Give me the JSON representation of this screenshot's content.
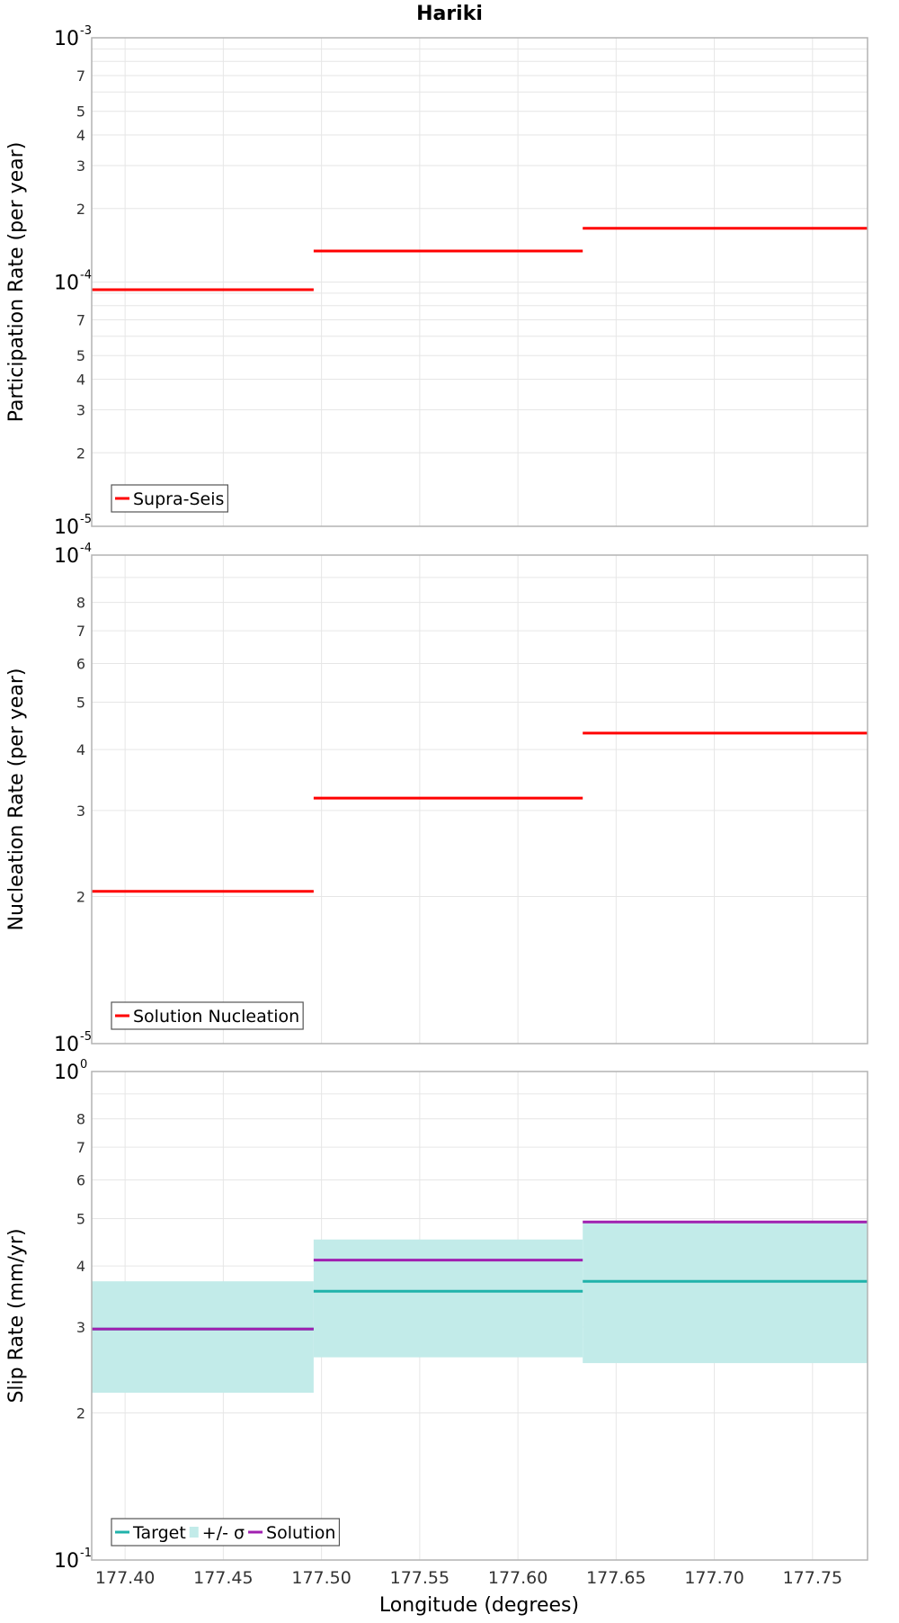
{
  "figure": {
    "title": "Hariki",
    "xlabel": "Longitude (degrees)"
  },
  "chart_data": [
    {
      "type": "line",
      "step": true,
      "ylabel": "Participation Rate (per year)",
      "yscale": "log",
      "ylim": [
        1e-05,
        0.001
      ],
      "xlim": [
        177.383,
        177.778
      ],
      "grid": true,
      "legend_position": "bottom-left",
      "series": [
        {
          "name": "Supra-Seis",
          "color": "#ff0000",
          "segments": [
            {
              "x0": 177.383,
              "x1": 177.496,
              "value": 9.3e-05
            },
            {
              "x0": 177.496,
              "x1": 177.633,
              "value": 0.000134
            },
            {
              "x0": 177.633,
              "x1": 177.778,
              "value": 0.000166
            }
          ]
        }
      ]
    },
    {
      "type": "line",
      "step": true,
      "ylabel": "Nucleation Rate (per year)",
      "yscale": "log",
      "ylim": [
        1e-05,
        0.0001
      ],
      "xlim": [
        177.383,
        177.778
      ],
      "grid": true,
      "legend_position": "bottom-left",
      "series": [
        {
          "name": "Solution Nucleation",
          "color": "#ff0000",
          "segments": [
            {
              "x0": 177.383,
              "x1": 177.496,
              "value": 2.05e-05
            },
            {
              "x0": 177.496,
              "x1": 177.633,
              "value": 3.18e-05
            },
            {
              "x0": 177.633,
              "x1": 177.778,
              "value": 4.32e-05
            }
          ]
        }
      ]
    },
    {
      "type": "line",
      "step": true,
      "ylabel": "Slip Rate (mm/yr)",
      "yscale": "log",
      "ylim": [
        0.1,
        1.0
      ],
      "xlim": [
        177.383,
        177.778
      ],
      "grid": true,
      "legend_position": "bottom-left",
      "band": {
        "name": "+/- σ",
        "color": "#c2ebe9",
        "segments": [
          {
            "x0": 177.383,
            "x1": 177.496,
            "low": 0.22,
            "high": 0.372
          },
          {
            "x0": 177.496,
            "x1": 177.633,
            "low": 0.26,
            "high": 0.453
          },
          {
            "x0": 177.633,
            "x1": 177.778,
            "low": 0.253,
            "high": 0.492
          }
        ]
      },
      "series": [
        {
          "name": "Target",
          "color": "#20b2aa",
          "segments": [
            {
              "x0": 177.383,
              "x1": 177.496,
              "value": 0.297
            },
            {
              "x0": 177.496,
              "x1": 177.633,
              "value": 0.355
            },
            {
              "x0": 177.633,
              "x1": 177.778,
              "value": 0.372
            }
          ]
        },
        {
          "name": "Solution",
          "color": "#a020b0",
          "segments": [
            {
              "x0": 177.383,
              "x1": 177.496,
              "value": 0.297
            },
            {
              "x0": 177.496,
              "x1": 177.633,
              "value": 0.411
            },
            {
              "x0": 177.633,
              "x1": 177.778,
              "value": 0.492
            }
          ]
        }
      ]
    }
  ],
  "axes": [
    {
      "decades": [
        {
          "base": "10",
          "exp": "-5",
          "value": 1e-05
        },
        {
          "base": "10",
          "exp": "-4",
          "value": 0.0001
        },
        {
          "base": "10",
          "exp": "-3",
          "value": 0.001
        }
      ],
      "minor_ticks": [
        {
          "label": "2",
          "value": 2e-05
        },
        {
          "label": "3",
          "value": 3e-05
        },
        {
          "label": "4",
          "value": 4e-05
        },
        {
          "label": "5",
          "value": 5e-05
        },
        {
          "label": "7",
          "value": 7e-05
        },
        {
          "label": "2",
          "value": 0.0002
        },
        {
          "label": "3",
          "value": 0.0003
        },
        {
          "label": "4",
          "value": 0.0004
        },
        {
          "label": "5",
          "value": 0.0005
        },
        {
          "label": "7",
          "value": 0.0007
        }
      ],
      "minor_grid": [
        6e-05,
        8e-05,
        9e-05,
        0.0006,
        0.0008,
        0.0009
      ]
    },
    {
      "decades": [
        {
          "base": "10",
          "exp": "-5",
          "value": 1e-05
        },
        {
          "base": "10",
          "exp": "-4",
          "value": 0.0001
        }
      ],
      "minor_ticks": [
        {
          "label": "2",
          "value": 2e-05
        },
        {
          "label": "3",
          "value": 3e-05
        },
        {
          "label": "4",
          "value": 4e-05
        },
        {
          "label": "5",
          "value": 5e-05
        },
        {
          "label": "6",
          "value": 6e-05
        },
        {
          "label": "7",
          "value": 7e-05
        },
        {
          "label": "8",
          "value": 8e-05
        }
      ],
      "minor_grid": [
        9e-05
      ]
    },
    {
      "decades": [
        {
          "base": "10",
          "exp": "-1",
          "value": 0.1
        },
        {
          "base": "10",
          "exp": "0",
          "value": 1.0
        }
      ],
      "minor_ticks": [
        {
          "label": "2",
          "value": 0.2
        },
        {
          "label": "3",
          "value": 0.3
        },
        {
          "label": "4",
          "value": 0.4
        },
        {
          "label": "5",
          "value": 0.5
        },
        {
          "label": "6",
          "value": 0.6
        },
        {
          "label": "7",
          "value": 0.7
        },
        {
          "label": "8",
          "value": 0.8
        }
      ],
      "minor_grid": [
        0.9
      ]
    }
  ],
  "x_ticks": [
    {
      "label": "177.40",
      "value": 177.4
    },
    {
      "label": "177.45",
      "value": 177.45
    },
    {
      "label": "177.50",
      "value": 177.5
    },
    {
      "label": "177.55",
      "value": 177.55
    },
    {
      "label": "177.60",
      "value": 177.6
    },
    {
      "label": "177.65",
      "value": 177.65
    },
    {
      "label": "177.70",
      "value": 177.7
    },
    {
      "label": "177.75",
      "value": 177.75
    }
  ]
}
